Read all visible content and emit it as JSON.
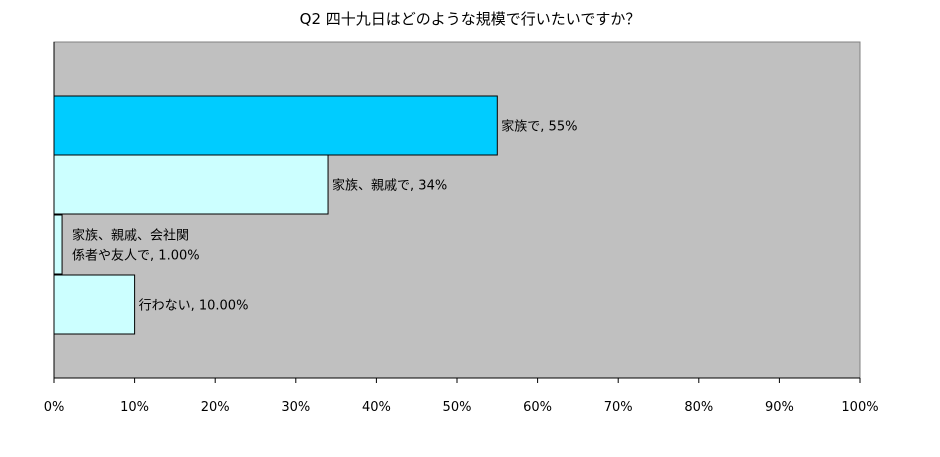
{
  "chart_data": {
    "type": "bar",
    "orientation": "horizontal",
    "title": "Q2  四十九日はどのような規模で行いたいですか？",
    "categories": [
      "家族で",
      "家族、親戚で",
      "家族、親戚、会社関係者や友人で",
      "行わない"
    ],
    "values": [
      55,
      34,
      1,
      10
    ],
    "data_labels": [
      [
        "家族で, 55%"
      ],
      [
        "家族、親戚で, 34%"
      ],
      [
        "家族、親戚、会社関",
        "係者や友人で, 1.00%"
      ],
      [
        "行わない, 10.00%"
      ]
    ],
    "bar_colors": [
      "#00CCFF",
      "#CCFFFF",
      "#CCFFFF",
      "#CCFFFF"
    ],
    "xlim": [
      0,
      100
    ],
    "x_ticks": [
      0,
      10,
      20,
      30,
      40,
      50,
      60,
      70,
      80,
      90,
      100
    ],
    "x_tick_labels": [
      "0%",
      "10%",
      "20%",
      "30%",
      "40%",
      "50%",
      "60%",
      "70%",
      "80%",
      "90%",
      "100%"
    ],
    "plot_background": "#C0C0C0",
    "grid": false,
    "legend": "none"
  }
}
